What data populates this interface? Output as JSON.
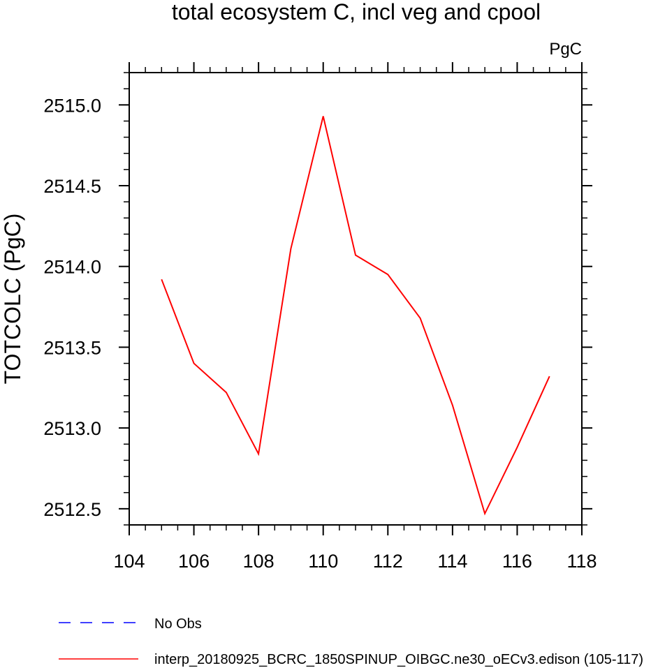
{
  "chart_data": {
    "type": "line",
    "title": "total ecosystem C, incl veg and cpool",
    "units_label": "PgC",
    "ylabel": "TOTCOLC  (PgC)",
    "xlabel": "",
    "xlim": [
      104,
      118
    ],
    "ylim": [
      2512.4,
      2515.2
    ],
    "x_ticks": [
      104,
      106,
      108,
      110,
      112,
      114,
      116,
      118
    ],
    "x_tick_labels": [
      "104",
      "106",
      "108",
      "110",
      "112",
      "114",
      "116",
      "118"
    ],
    "y_ticks": [
      2512.5,
      2513.0,
      2513.5,
      2514.0,
      2514.5,
      2515.0
    ],
    "y_tick_labels": [
      "2512.5",
      "2513.0",
      "2513.5",
      "2514.0",
      "2514.5",
      "2515.0"
    ],
    "grid": false,
    "legend_position": "bottom",
    "series": [
      {
        "name": "interp_20180925_BCRC_1850SPINUP_OIBGC.ne30_oECv3.edison (105-117)",
        "color": "#ff0000",
        "style": "solid",
        "x": [
          105,
          106,
          107,
          108,
          109,
          110,
          111,
          112,
          113,
          114,
          115,
          116,
          117
        ],
        "y": [
          2513.92,
          2513.4,
          2513.22,
          2512.84,
          2514.11,
          2514.93,
          2514.07,
          2513.95,
          2513.68,
          2513.14,
          2512.47,
          2512.88,
          2513.32
        ]
      }
    ],
    "legend": [
      {
        "label": "No Obs",
        "color": "#0000ff",
        "style": "dashed"
      },
      {
        "label": "interp_20180925_BCRC_1850SPINUP_OIBGC.ne30_oECv3.edison (105-117)",
        "color": "#ff0000",
        "style": "solid"
      }
    ]
  }
}
